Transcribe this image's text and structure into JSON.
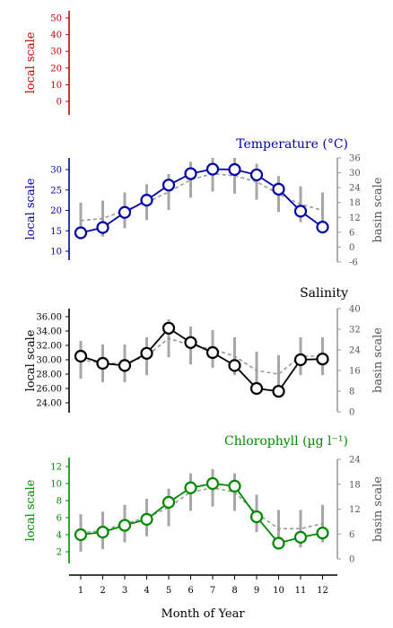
{
  "figure": {
    "xlabel": "Month of Year",
    "x_ticks": [
      "1",
      "2",
      "3",
      "4",
      "5",
      "6",
      "7",
      "8",
      "9",
      "10",
      "11",
      "12"
    ]
  },
  "chart_data": [
    {
      "type": "line",
      "title": "",
      "ylabel": "local scale",
      "y_ticks": [
        "50",
        "40",
        "30",
        "20",
        "10",
        "0"
      ],
      "ylim": [
        -5,
        55
      ],
      "color": "#cc0000",
      "series": []
    },
    {
      "type": "line",
      "title": "Temperature (°C)",
      "ylabel": "local scale",
      "ylabel_right": "basin scale",
      "color": "#0000aa",
      "x": [
        1,
        2,
        3,
        4,
        5,
        6,
        7,
        8,
        9,
        10,
        11,
        12
      ],
      "ylim": [
        8,
        32
      ],
      "y_ticks": [
        "30",
        "25",
        "20",
        "15",
        "10"
      ],
      "ylim_right": [
        -6,
        36
      ],
      "y_ticks_right": [
        "36",
        "30",
        "24",
        "18",
        "12",
        "6",
        "0",
        "-6"
      ],
      "series": [
        {
          "name": "local",
          "values": [
            14.5,
            15.8,
            19.5,
            22.5,
            26.2,
            29.0,
            30.1,
            30.0,
            28.7,
            25.2,
            19.8,
            15.9
          ]
        },
        {
          "name": "basin",
          "values": [
            17.5,
            18.0,
            20.0,
            22.0,
            24.5,
            27.5,
            29.0,
            28.5,
            27.0,
            24.0,
            21.5,
            20.0
          ]
        }
      ]
    },
    {
      "type": "line",
      "title": "Salinity",
      "ylabel": "local scale",
      "ylabel_right": "basin scale",
      "color": "#000000",
      "x": [
        1,
        2,
        3,
        4,
        5,
        6,
        7,
        8,
        9,
        10,
        11,
        12
      ],
      "ylim": [
        23.2,
        37.0
      ],
      "y_ticks": [
        "36.00",
        "34.00",
        "32.00",
        "30.00",
        "28.00",
        "26.00",
        "24.00"
      ],
      "ylim_right": [
        0,
        40
      ],
      "y_ticks_right": [
        "40",
        "32",
        "24",
        "16",
        "8",
        "0"
      ],
      "series": [
        {
          "name": "local",
          "values": [
            30.5,
            29.5,
            29.2,
            30.9,
            34.4,
            32.4,
            31.0,
            29.2,
            26.0,
            25.6,
            30.0,
            30.1
          ]
        },
        {
          "name": "basin",
          "values": [
            30.0,
            29.5,
            29.5,
            30.5,
            33.0,
            32.0,
            31.5,
            30.5,
            28.5,
            28.0,
            30.5,
            30.5
          ]
        }
      ]
    },
    {
      "type": "line",
      "title": "Chlorophyll (µg l⁻¹)",
      "ylabel": "local scale",
      "ylabel_right": "basin scale",
      "color": "#008800",
      "x": [
        1,
        2,
        3,
        4,
        5,
        6,
        7,
        8,
        9,
        10,
        11,
        12
      ],
      "ylim": [
        1,
        13
      ],
      "y_ticks": [
        "12",
        "10",
        "8",
        "6",
        "4",
        "2"
      ],
      "ylim_right": [
        0,
        24
      ],
      "y_ticks_right": [
        "24",
        "18",
        "12",
        "6",
        "0"
      ],
      "series": [
        {
          "name": "local",
          "values": [
            4.0,
            4.3,
            5.1,
            5.8,
            7.8,
            9.5,
            10.0,
            9.7,
            6.1,
            3.0,
            3.7,
            4.2
          ]
        },
        {
          "name": "basin",
          "values": [
            4.2,
            4.5,
            5.3,
            6.0,
            7.2,
            9.0,
            9.5,
            9.0,
            6.5,
            4.7,
            4.7,
            5.3
          ]
        }
      ]
    }
  ]
}
